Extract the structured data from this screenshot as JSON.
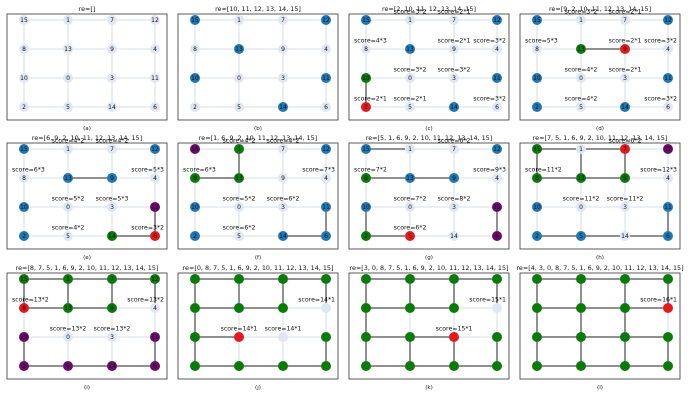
{
  "colors": {
    "grid_line": "#c8d4e2",
    "edge": "#222222",
    "unvisited_fill": "#dfe8f2",
    "unvisited_text": "#222222",
    "frontier": "#1f77b4",
    "visited": "#0a7a0a",
    "current": "#e41a1c",
    "blocked": "#6a0a6a",
    "node_text": "#111111"
  },
  "grid": {
    "labels": [
      [
        "15",
        "1",
        "7",
        "12"
      ],
      [
        "8",
        "13",
        "9",
        "4"
      ],
      [
        "10",
        "0",
        "3",
        "11"
      ],
      [
        "2",
        "5",
        "14",
        "6"
      ]
    ]
  },
  "panels": [
    {
      "title": "re=[]",
      "caption": "(a)",
      "node_states": [
        [
          "u",
          "u",
          "u",
          "u"
        ],
        [
          "u",
          "u",
          "u",
          "u"
        ],
        [
          "u",
          "u",
          "u",
          "u"
        ],
        [
          "u",
          "u",
          "u",
          "u"
        ]
      ],
      "hide_labels": false,
      "edges": [],
      "scores": []
    },
    {
      "title": "re=[10, 11, 12, 13, 14, 15]",
      "caption": "(b)",
      "node_states": [
        [
          "f",
          "u",
          "u",
          "f"
        ],
        [
          "u",
          "f",
          "u",
          "u"
        ],
        [
          "f",
          "u",
          "u",
          "f"
        ],
        [
          "u",
          "u",
          "f",
          "u"
        ]
      ],
      "hide_labels": false,
      "edges": [],
      "scores": []
    },
    {
      "title": "re=[2, 10, 11, 12, 13, 14, 15]",
      "caption": "(c)",
      "node_states": [
        [
          "f",
          "u",
          "u",
          "f"
        ],
        [
          "u",
          "f",
          "u",
          "u"
        ],
        [
          "v",
          "u",
          "u",
          "f"
        ],
        [
          "c",
          "u",
          "f",
          "u"
        ]
      ],
      "hide_labels": false,
      "edges": [
        [
          2,
          0,
          3,
          0
        ]
      ],
      "scores": [
        {
          "text": "score=3*2",
          "r": 0,
          "c": 1
        },
        {
          "text": "score=2*1",
          "r": 0,
          "c": 2
        },
        {
          "text": "score=4*3",
          "r": 1,
          "c": 0
        },
        {
          "text": "score=2*1",
          "r": 1,
          "c": 2
        },
        {
          "text": "score=3*2",
          "r": 1,
          "c": 3
        },
        {
          "text": "score=3*2",
          "r": 2,
          "c": 1
        },
        {
          "text": "score=3*2",
          "r": 2,
          "c": 2
        },
        {
          "text": "score=2*1",
          "r": 3,
          "c": 0
        },
        {
          "text": "score=2*1",
          "r": 3,
          "c": 1
        },
        {
          "text": "score=3*2",
          "r": 3,
          "c": 3
        }
      ]
    },
    {
      "title": "re=[9, 2, 10, 11, 12, 13, 14, 15]",
      "caption": "(d)",
      "node_states": [
        [
          "f",
          "u",
          "u",
          "f"
        ],
        [
          "u",
          "v",
          "c",
          "u"
        ],
        [
          "f",
          "u",
          "u",
          "f"
        ],
        [
          "f",
          "u",
          "f",
          "u"
        ]
      ],
      "hide_labels": false,
      "edges": [
        [
          1,
          1,
          1,
          2
        ]
      ],
      "scores": [
        {
          "text": "score=3*2",
          "r": 0,
          "c": 1
        },
        {
          "text": "score=2*1",
          "r": 0,
          "c": 2
        },
        {
          "text": "score=5*3",
          "r": 1,
          "c": 0
        },
        {
          "text": "score=2*1",
          "r": 1,
          "c": 2
        },
        {
          "text": "score=3*2",
          "r": 1,
          "c": 3
        },
        {
          "text": "score=4*2",
          "r": 2,
          "c": 1
        },
        {
          "text": "score=2*1",
          "r": 2,
          "c": 2
        },
        {
          "text": "score=4*2",
          "r": 3,
          "c": 1
        },
        {
          "text": "score=3*2",
          "r": 3,
          "c": 3
        }
      ]
    },
    {
      "title": "re=[6, 9, 2, 10, 11, 12, 13, 14, 15]",
      "caption": "(e)",
      "node_states": [
        [
          "f",
          "u",
          "u",
          "f"
        ],
        [
          "u",
          "f",
          "f",
          "u"
        ],
        [
          "f",
          "u",
          "u",
          "b"
        ],
        [
          "f",
          "u",
          "v",
          "c"
        ]
      ],
      "hide_labels": false,
      "edges": [
        [
          1,
          1,
          1,
          2
        ],
        [
          2,
          3,
          3,
          3
        ],
        [
          3,
          2,
          3,
          3
        ]
      ],
      "scores": [
        {
          "text": "score=4*2",
          "r": 0,
          "c": 1
        },
        {
          "text": "score=4*2",
          "r": 0,
          "c": 2
        },
        {
          "text": "score=6*3",
          "r": 1,
          "c": 0
        },
        {
          "text": "score=5*3",
          "r": 1,
          "c": 3
        },
        {
          "text": "score=5*2",
          "r": 2,
          "c": 1
        },
        {
          "text": "score=5*3",
          "r": 2,
          "c": 2
        },
        {
          "text": "score=4*2",
          "r": 3,
          "c": 1
        },
        {
          "text": "score=3*2",
          "r": 3,
          "c": 3
        }
      ]
    },
    {
      "title": "re=[1, 6, 9, 2, 10, 11, 12, 13, 14, 15]",
      "caption": "(f)",
      "node_states": [
        [
          "b",
          "v",
          "u",
          "f"
        ],
        [
          "v",
          "v",
          "u",
          "u"
        ],
        [
          "f",
          "u",
          "u",
          "f"
        ],
        [
          "f",
          "u",
          "f",
          "f"
        ]
      ],
      "hide_labels": false,
      "edges": [
        [
          0,
          1,
          1,
          1
        ],
        [
          1,
          0,
          1,
          1
        ],
        [
          2,
          3,
          3,
          3
        ],
        [
          3,
          2,
          3,
          3
        ]
      ],
      "scores": [
        {
          "text": "score=4*2",
          "r": 0,
          "c": 1
        },
        {
          "text": "score=4*2",
          "r": 0,
          "c": 2
        },
        {
          "text": "score=6*3",
          "r": 1,
          "c": 0
        },
        {
          "text": "score=7*3",
          "r": 1,
          "c": 3
        },
        {
          "text": "score=5*2",
          "r": 2,
          "c": 1
        },
        {
          "text": "score=6*2",
          "r": 2,
          "c": 2
        },
        {
          "text": "score=6*2",
          "r": 3,
          "c": 1
        }
      ]
    },
    {
      "title": "re=[5, 1, 6, 9, 2, 10, 11, 12, 13, 14, 15]",
      "caption": "(g)",
      "node_states": [
        [
          "f",
          "u",
          "u",
          "f"
        ],
        [
          "v",
          "f",
          "f",
          "u"
        ],
        [
          "f",
          "u",
          "u",
          "b"
        ],
        [
          "v",
          "c",
          "u",
          "b"
        ]
      ],
      "hide_labels": false,
      "edges": [
        [
          0,
          0,
          0,
          1
        ],
        [
          1,
          0,
          1,
          1
        ],
        [
          1,
          1,
          1,
          2
        ],
        [
          2,
          0,
          3,
          0
        ],
        [
          3,
          0,
          3,
          1
        ],
        [
          2,
          3,
          3,
          3
        ]
      ],
      "scores": [
        {
          "text": "score=6*2",
          "r": 0,
          "c": 2
        },
        {
          "text": "score=7*2",
          "r": 1,
          "c": 0
        },
        {
          "text": "score=9*3",
          "r": 1,
          "c": 3
        },
        {
          "text": "score=7*2",
          "r": 2,
          "c": 1
        },
        {
          "text": "score=8*2",
          "r": 2,
          "c": 2
        },
        {
          "text": "score=6*2",
          "r": 3,
          "c": 1
        }
      ]
    },
    {
      "title": "re=[7, 5, 1, 6, 9, 2, 10, 11, 12, 13, 14, 15]",
      "caption": "(h)",
      "node_states": [
        [
          "v",
          "u",
          "c",
          "b"
        ],
        [
          "v",
          "v",
          "v",
          "u"
        ],
        [
          "f",
          "u",
          "u",
          "f"
        ],
        [
          "f",
          "f",
          "u",
          "f"
        ]
      ],
      "hide_labels": false,
      "edges": [
        [
          0,
          0,
          0,
          2
        ],
        [
          0,
          0,
          1,
          0
        ],
        [
          0,
          1,
          1,
          1
        ],
        [
          1,
          0,
          1,
          2
        ],
        [
          0,
          2,
          1,
          2
        ],
        [
          2,
          3,
          3,
          3
        ],
        [
          3,
          0,
          3,
          3
        ]
      ],
      "scores": [
        {
          "text": "score=6*2",
          "r": 0,
          "c": 2
        },
        {
          "text": "score=11*2",
          "r": 1,
          "c": 0
        },
        {
          "text": "score=12*3",
          "r": 1,
          "c": 3
        },
        {
          "text": "score=11*2",
          "r": 2,
          "c": 1
        },
        {
          "text": "score=11*2",
          "r": 2,
          "c": 2
        }
      ]
    },
    {
      "title": "re=[8, 7, 5, 1, 6, 9, 2, 10, 11, 12, 13, 14, 15]",
      "caption": "(i)",
      "node_states": [
        [
          "v",
          "v",
          "v",
          "v"
        ],
        [
          "c",
          "v",
          "v",
          "u"
        ],
        [
          "b",
          "u",
          "u",
          "b"
        ],
        [
          "b",
          "b",
          "b",
          "b"
        ]
      ],
      "hide_labels": false,
      "edges": [
        [
          0,
          0,
          0,
          3
        ],
        [
          1,
          0,
          1,
          2
        ],
        [
          0,
          0,
          1,
          0
        ],
        [
          0,
          1,
          1,
          1
        ],
        [
          0,
          2,
          1,
          2
        ],
        [
          0,
          3,
          1,
          3
        ],
        [
          2,
          0,
          3,
          0
        ],
        [
          3,
          0,
          3,
          3
        ],
        [
          2,
          3,
          3,
          3
        ]
      ],
      "scores": [
        {
          "text": "score=13*2",
          "r": 1,
          "c": 0
        },
        {
          "text": "score=13*2",
          "r": 1,
          "c": 3
        },
        {
          "text": "score=13*2",
          "r": 2,
          "c": 1
        },
        {
          "text": "score=13*2",
          "r": 2,
          "c": 2
        }
      ]
    },
    {
      "title": "re=[0, 8, 7, 5, 1, 6, 9, 2, 10, 11, 12, 13, 14, 15]",
      "caption": "(j)",
      "node_states": [
        [
          "v",
          "v",
          "v",
          "v"
        ],
        [
          "v",
          "v",
          "v",
          "u"
        ],
        [
          "v",
          "c",
          "u",
          "v"
        ],
        [
          "v",
          "v",
          "v",
          "v"
        ]
      ],
      "hide_labels": true,
      "edges": [
        [
          0,
          0,
          0,
          3
        ],
        [
          1,
          0,
          1,
          2
        ],
        [
          2,
          0,
          2,
          1
        ],
        [
          3,
          0,
          3,
          3
        ],
        [
          0,
          0,
          3,
          0
        ],
        [
          0,
          1,
          1,
          1
        ],
        [
          0,
          2,
          1,
          2
        ],
        [
          0,
          3,
          1,
          3
        ],
        [
          2,
          3,
          3,
          3
        ]
      ],
      "scores": [
        {
          "text": "score=14*1",
          "r": 1,
          "c": 3
        },
        {
          "text": "score=14*1",
          "r": 2,
          "c": 1
        },
        {
          "text": "score=14*1",
          "r": 2,
          "c": 2
        }
      ]
    },
    {
      "title": "re=[3, 0, 8, 7, 5, 1, 6, 9, 2, 10, 11, 12, 13, 14, 15]",
      "caption": "(k)",
      "node_states": [
        [
          "v",
          "v",
          "v",
          "v"
        ],
        [
          "v",
          "v",
          "v",
          "u"
        ],
        [
          "v",
          "v",
          "c",
          "v"
        ],
        [
          "v",
          "v",
          "v",
          "v"
        ]
      ],
      "hide_labels": true,
      "edges": [
        [
          0,
          0,
          0,
          3
        ],
        [
          1,
          0,
          1,
          2
        ],
        [
          2,
          0,
          2,
          2
        ],
        [
          3,
          0,
          3,
          3
        ],
        [
          0,
          0,
          3,
          0
        ],
        [
          0,
          1,
          1,
          1
        ],
        [
          0,
          2,
          1,
          2
        ],
        [
          0,
          3,
          1,
          3
        ],
        [
          2,
          3,
          3,
          3
        ],
        [
          2,
          1,
          3,
          1
        ],
        [
          2,
          2,
          3,
          2
        ]
      ],
      "scores": [
        {
          "text": "score=15*1",
          "r": 1,
          "c": 3
        },
        {
          "text": "score=15*1",
          "r": 2,
          "c": 2
        }
      ]
    },
    {
      "title": "re=[4, 3, 0, 8, 7, 5, 1, 6, 9, 2, 10, 11, 12, 13, 14, 15]",
      "caption": "(l)",
      "node_states": [
        [
          "v",
          "v",
          "v",
          "v"
        ],
        [
          "v",
          "v",
          "v",
          "c"
        ],
        [
          "v",
          "v",
          "v",
          "v"
        ],
        [
          "v",
          "v",
          "v",
          "v"
        ]
      ],
      "hide_labels": true,
      "edges": [
        [
          0,
          0,
          0,
          3
        ],
        [
          1,
          0,
          1,
          3
        ],
        [
          2,
          0,
          2,
          3
        ],
        [
          3,
          0,
          3,
          3
        ],
        [
          0,
          0,
          3,
          0
        ],
        [
          0,
          1,
          3,
          1
        ],
        [
          0,
          2,
          3,
          2
        ],
        [
          0,
          3,
          1,
          3
        ],
        [
          2,
          3,
          3,
          3
        ]
      ],
      "scores": [
        {
          "text": "score=16*1",
          "r": 1,
          "c": 3
        }
      ]
    }
  ]
}
